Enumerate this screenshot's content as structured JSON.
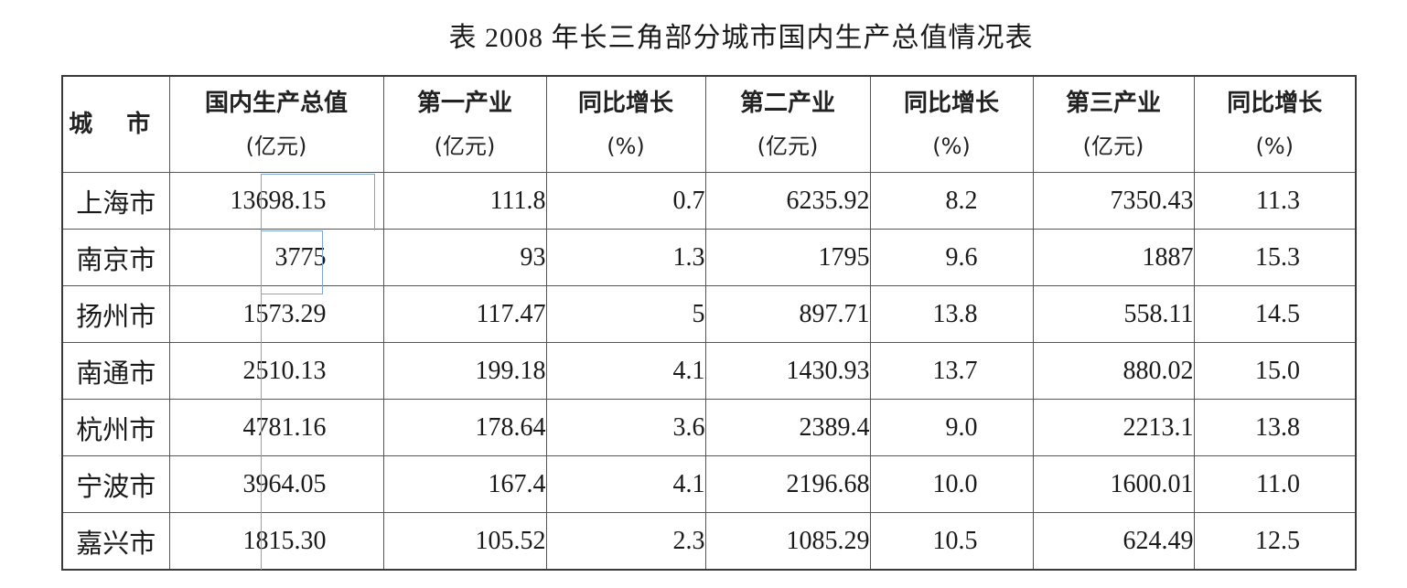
{
  "title": "表 2008 年长三角部分城市国内生产总值情况表",
  "headers": [
    {
      "line1": "城 市",
      "line2": ""
    },
    {
      "line1": "国内生产总值",
      "line2": "(亿元)"
    },
    {
      "line1": "第一产业",
      "line2": "(亿元)"
    },
    {
      "line1": "同比增长",
      "line2": "(%)"
    },
    {
      "line1": "第二产业",
      "line2": "(亿元)"
    },
    {
      "line1": "同比增长",
      "line2": "(%)"
    },
    {
      "line1": "第三产业",
      "line2": "(亿元)"
    },
    {
      "line1": "同比增长",
      "line2": "(%)"
    }
  ],
  "rows": [
    [
      "上海市",
      "13698.15",
      "111.8",
      "0.7",
      "6235.92",
      "8.2",
      "7350.43",
      "11.3"
    ],
    [
      "南京市",
      "3775",
      "93",
      "1.3",
      "1795",
      "9.6",
      "1887",
      "15.3"
    ],
    [
      "扬州市",
      "1573.29",
      "117.47",
      "5",
      "897.71",
      "13.8",
      "558.11",
      "14.5"
    ],
    [
      "南通市",
      "2510.13",
      "199.18",
      "4.1",
      "1430.93",
      "13.7",
      "880.02",
      "15.0"
    ],
    [
      "杭州市",
      "4781.16",
      "178.64",
      "3.6",
      "2389.4",
      "9.0",
      "2213.1",
      "13.8"
    ],
    [
      "宁波市",
      "3964.05",
      "167.4",
      "4.1",
      "2196.68",
      "10.0",
      "1600.01",
      "11.0"
    ],
    [
      "嘉兴市",
      "1815.30",
      "105.52",
      "2.3",
      "1085.29",
      "10.5",
      "624.49",
      "12.5"
    ]
  ]
}
